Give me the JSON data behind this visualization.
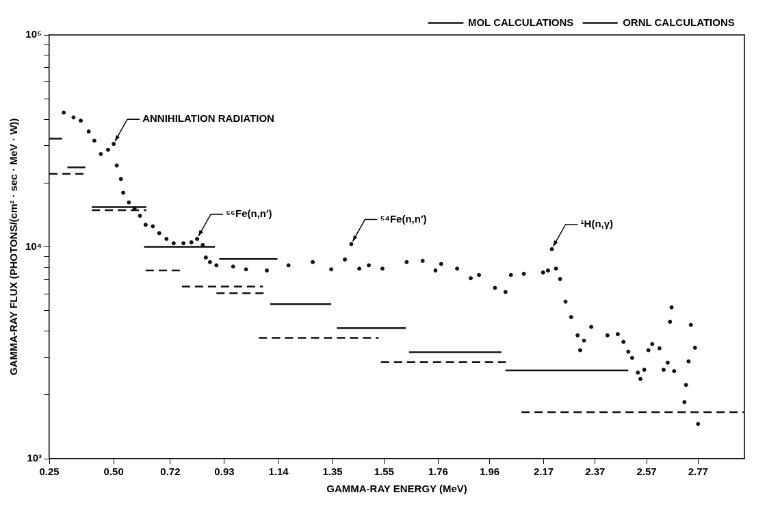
{
  "chart_data": {
    "type": "scatter",
    "xlabel": "GAMMA-RAY ENERGY (MeV)",
    "ylabel": "GAMMA-RAY FLUX (PHOTONS/(cm² · sec · MeV · W))",
    "log": "y",
    "grid": false,
    "legend": "top right",
    "xlim": [
      0.25,
      2.95
    ],
    "xticks": [
      0.25,
      {
        "value": 0.5,
        "label": "0.50"
      },
      0.72,
      0.93,
      1.14,
      1.35,
      1.55,
      1.76,
      1.96,
      2.17,
      2.37,
      2.57,
      2.77
    ],
    "ylim": [
      1000,
      100000
    ],
    "yticks": [
      {
        "value": 1000,
        "label": "10³"
      },
      {
        "value": 2000,
        "label": null
      },
      {
        "value": 3000,
        "label": null
      },
      {
        "value": 4000,
        "label": null
      },
      {
        "value": 5000,
        "label": null
      },
      {
        "value": 6000,
        "label": null
      },
      {
        "value": 7000,
        "label": null
      },
      {
        "value": 8000,
        "label": null
      },
      {
        "value": 9000,
        "label": null
      },
      {
        "value": 10000,
        "label": "10⁴"
      },
      {
        "value": 20000,
        "label": null
      },
      {
        "value": 30000,
        "label": null
      },
      {
        "value": 40000,
        "label": null
      },
      {
        "value": 50000,
        "label": null
      },
      {
        "value": 60000,
        "label": null
      },
      {
        "value": 70000,
        "label": null
      },
      {
        "value": 80000,
        "label": null
      },
      {
        "value": 90000,
        "label": null
      },
      {
        "value": 100000,
        "label": "10⁵"
      }
    ],
    "series": [
      {
        "type": "scatter",
        "color": "#111111",
        "marker": "circle",
        "x": [
          0.306,
          0.344,
          0.372,
          0.403,
          0.425,
          0.45,
          0.478,
          0.5,
          0.512,
          0.528,
          0.537,
          0.559,
          0.581,
          0.602,
          0.624,
          0.652,
          0.677,
          0.705,
          0.733,
          0.771,
          0.802,
          0.824,
          0.846,
          0.858,
          0.874,
          0.899,
          0.964,
          1.014,
          1.095,
          1.179,
          1.273,
          1.345,
          1.398,
          1.423,
          1.454,
          1.491,
          1.544,
          1.638,
          1.7,
          1.75,
          1.772,
          1.834,
          1.887,
          1.919,
          1.981,
          2.022,
          2.043,
          2.093,
          2.168,
          2.187,
          2.202,
          2.218,
          2.234,
          2.255,
          2.277,
          2.302,
          2.312,
          2.327,
          2.355,
          2.418,
          2.458,
          2.48,
          2.499,
          2.514,
          2.536,
          2.546,
          2.561,
          2.577,
          2.592,
          2.62,
          2.636,
          2.652,
          2.661,
          2.667,
          2.677,
          2.717,
          2.723,
          2.733,
          2.742,
          2.758,
          2.77
        ],
        "values": [
          43000,
          40800,
          39400,
          35000,
          31700,
          27400,
          28700,
          30600,
          24200,
          20900,
          18000,
          16200,
          15200,
          14000,
          12700,
          12500,
          11600,
          10900,
          10400,
          10400,
          10500,
          10900,
          10200,
          8900,
          8470,
          8180,
          8070,
          7830,
          7730,
          8180,
          8470,
          7830,
          8710,
          10300,
          7890,
          8180,
          7890,
          8470,
          8590,
          7730,
          8300,
          7890,
          7110,
          7360,
          6400,
          6120,
          7360,
          7460,
          7570,
          7730,
          9750,
          7890,
          7050,
          5510,
          4660,
          3820,
          3250,
          3610,
          4190,
          3820,
          3870,
          3560,
          3200,
          2990,
          2550,
          2380,
          2630,
          3250,
          3480,
          3320,
          2630,
          2840,
          4430,
          5180,
          2590,
          1850,
          2230,
          2880,
          4280,
          3340,
          1460
        ]
      },
      {
        "type": "line",
        "name": "MOL CALCULATIONS",
        "color": "#111111",
        "marker": "none",
        "line_style": "solid",
        "x": [
          0.25,
          0.3,
          0.31,
          0.32,
          0.39,
          0.4,
          0.415,
          0.627,
          0.62,
          0.618,
          0.893,
          0.9,
          0.91,
          1.136,
          1.12,
          1.108,
          1.345,
          1.36,
          1.367,
          1.635,
          1.64,
          1.647,
          2.006,
          2.01,
          2.022,
          2.499
        ],
        "values": [
          32400,
          32400,
          null,
          23700,
          23700,
          null,
          15400,
          15400,
          null,
          10000,
          10000,
          null,
          8770,
          8770,
          null,
          5360,
          5360,
          null,
          4130,
          4130,
          null,
          3180,
          3180,
          null,
          2610,
          2610
        ]
      },
      {
        "type": "line",
        "name": "ORNL CALCULATIONS",
        "color": "#111111",
        "marker": "none",
        "line_style": "dashed",
        "x": [
          0.25,
          0.39,
          0.4,
          0.415,
          0.627,
          0.625,
          0.624,
          0.774,
          0.77,
          0.765,
          1.08,
          0.9,
          0.899,
          1.09,
          1.07,
          1.064,
          1.529,
          1.53,
          1.538,
          2.023,
          2.05,
          2.084,
          2.95
        ],
        "values": [
          22100,
          22100,
          null,
          14900,
          14900,
          null,
          7730,
          7730,
          null,
          6500,
          6500,
          null,
          6040,
          6040,
          null,
          3720,
          3720,
          null,
          2860,
          2860,
          null,
          1660,
          1660
        ]
      }
    ],
    "annotations": [
      {
        "text": "ANNIHILATION RADIATION",
        "x": 0.5,
        "y": 30600
      },
      {
        "text": "⁵⁶Fe(n,n′)",
        "x": 0.824,
        "y": 10900
      },
      {
        "text": "⁵⁴Fe(n,n′)",
        "x": 1.423,
        "y": 10300
      },
      {
        "text": "¹H(n,γ)",
        "x": 2.202,
        "y": 9750
      }
    ]
  }
}
